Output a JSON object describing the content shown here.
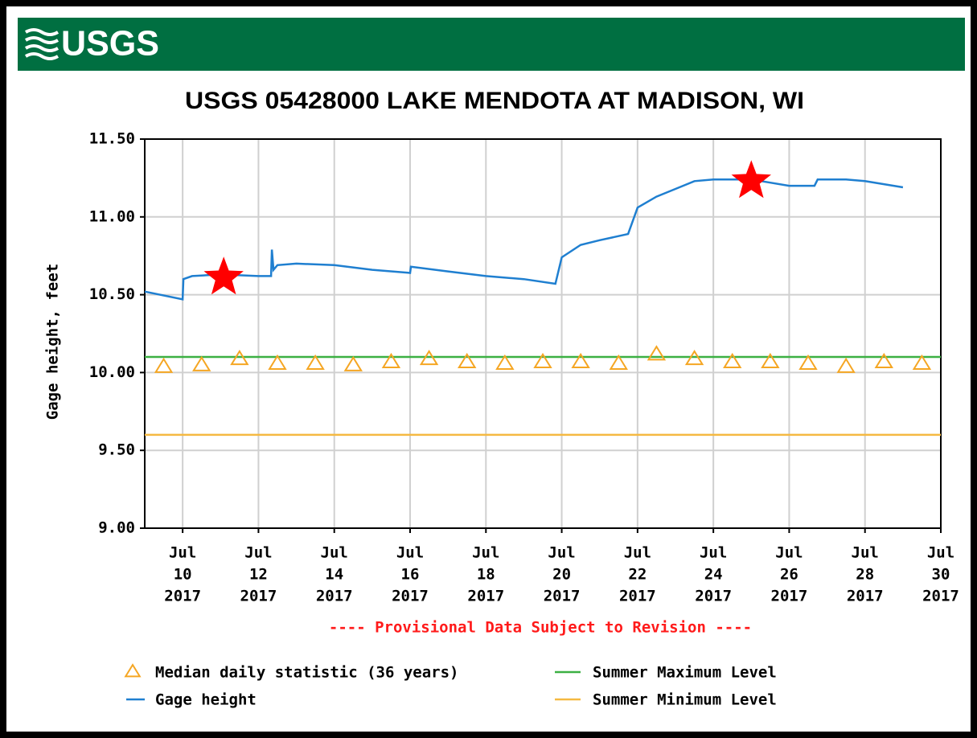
{
  "header": {
    "logo": "USGS"
  },
  "chart_data": {
    "type": "line",
    "title": "USGS 05428000 LAKE MENDOTA AT MADISON, WI",
    "ylabel": "Gage height, feet",
    "note": "---- Provisional Data Subject to Revision ----",
    "xlim": [
      "2017-07-09T00:00",
      "2017-07-30T00:00"
    ],
    "xticks": [
      {
        "value": "2017-07-10T00:00",
        "label": [
          "Jul",
          "10",
          "2017"
        ]
      },
      {
        "value": "2017-07-12T00:00",
        "label": [
          "Jul",
          "12",
          "2017"
        ]
      },
      {
        "value": "2017-07-14T00:00",
        "label": [
          "Jul",
          "14",
          "2017"
        ]
      },
      {
        "value": "2017-07-16T00:00",
        "label": [
          "Jul",
          "16",
          "2017"
        ]
      },
      {
        "value": "2017-07-18T00:00",
        "label": [
          "Jul",
          "18",
          "2017"
        ]
      },
      {
        "value": "2017-07-20T00:00",
        "label": [
          "Jul",
          "20",
          "2017"
        ]
      },
      {
        "value": "2017-07-22T00:00",
        "label": [
          "Jul",
          "22",
          "2017"
        ]
      },
      {
        "value": "2017-07-24T00:00",
        "label": [
          "Jul",
          "24",
          "2017"
        ]
      },
      {
        "value": "2017-07-26T00:00",
        "label": [
          "Jul",
          "26",
          "2017"
        ]
      },
      {
        "value": "2017-07-28T00:00",
        "label": [
          "Jul",
          "28",
          "2017"
        ]
      },
      {
        "value": "2017-07-30T00:00",
        "label": [
          "Jul",
          "30",
          "2017"
        ]
      }
    ],
    "ylim": [
      9,
      11.5
    ],
    "yticks": [
      {
        "value": 9,
        "label": "9.00"
      },
      {
        "value": 9.5,
        "label": "9.50"
      },
      {
        "value": 10,
        "label": "10.00"
      },
      {
        "value": 10.5,
        "label": "10.50"
      },
      {
        "value": 11,
        "label": "11.00"
      },
      {
        "value": 11.5,
        "label": "11.50"
      }
    ],
    "grid": true,
    "series": [
      {
        "name": "Gage height",
        "color": "#1f7fd0",
        "x": [
          "2017-07-09T00:00",
          "2017-07-10T00:00",
          "2017-07-10T00:30",
          "2017-07-10T06:00",
          "2017-07-11T00:00",
          "2017-07-12T00:00",
          "2017-07-12T08:00",
          "2017-07-12T08:30",
          "2017-07-12T09:30",
          "2017-07-12T12:00",
          "2017-07-13T00:00",
          "2017-07-14T00:00",
          "2017-07-15T00:00",
          "2017-07-16T00:00",
          "2017-07-16T00:30",
          "2017-07-17T00:00",
          "2017-07-18T00:00",
          "2017-07-19T00:00",
          "2017-07-19T20:00",
          "2017-07-20T00:00",
          "2017-07-20T12:00",
          "2017-07-21T00:00",
          "2017-07-21T18:00",
          "2017-07-22T00:00",
          "2017-07-22T12:00",
          "2017-07-23T00:00",
          "2017-07-23T12:00",
          "2017-07-24T00:00",
          "2017-07-25T00:00",
          "2017-07-25T12:00",
          "2017-07-26T00:00",
          "2017-07-26T16:00",
          "2017-07-26T18:00",
          "2017-07-27T12:00",
          "2017-07-28T00:00",
          "2017-07-29T00:00"
        ],
        "values": [
          10.52,
          10.47,
          10.6,
          10.62,
          10.63,
          10.62,
          10.62,
          10.79,
          10.66,
          10.69,
          10.7,
          10.69,
          10.66,
          10.64,
          10.68,
          10.65,
          10.62,
          10.6,
          10.57,
          10.74,
          10.82,
          10.85,
          10.89,
          11.06,
          11.13,
          11.18,
          11.23,
          11.24,
          11.24,
          11.22,
          11.2,
          11.2,
          11.24,
          11.24,
          11.23,
          11.19
        ]
      },
      {
        "name": "Median daily statistic (36 years)",
        "color": "#f5a623",
        "marker": "triangle",
        "x": [
          "2017-07-09T12:00",
          "2017-07-10T12:00",
          "2017-07-11T12:00",
          "2017-07-12T12:00",
          "2017-07-13T12:00",
          "2017-07-14T12:00",
          "2017-07-15T12:00",
          "2017-07-16T12:00",
          "2017-07-17T12:00",
          "2017-07-18T12:00",
          "2017-07-19T12:00",
          "2017-07-20T12:00",
          "2017-07-21T12:00",
          "2017-07-22T12:00",
          "2017-07-23T12:00",
          "2017-07-24T12:00",
          "2017-07-25T12:00",
          "2017-07-26T12:00",
          "2017-07-27T12:00",
          "2017-07-28T12:00",
          "2017-07-29T12:00"
        ],
        "values": [
          10.04,
          10.05,
          10.09,
          10.06,
          10.06,
          10.05,
          10.07,
          10.09,
          10.07,
          10.06,
          10.07,
          10.07,
          10.06,
          10.12,
          10.09,
          10.07,
          10.07,
          10.06,
          10.04,
          10.07,
          10.06
        ]
      }
    ],
    "hlines": [
      {
        "name": "Summer Maximum Level",
        "color": "#3cb043",
        "value": 10.1
      },
      {
        "name": "Summer Minimum Level",
        "color": "#f5b942",
        "value": 9.6
      }
    ],
    "stars": [
      {
        "color": "#ff0000",
        "x": "2017-07-11T02:00",
        "y": 10.61
      },
      {
        "color": "#ff0000",
        "x": "2017-07-25T00:00",
        "y": 11.23
      }
    ]
  }
}
